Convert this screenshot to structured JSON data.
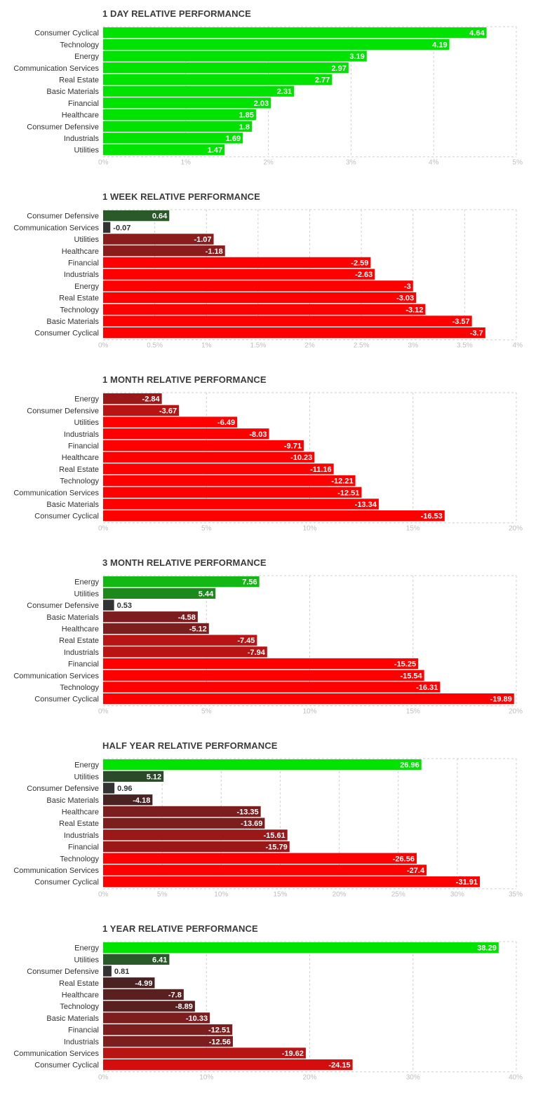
{
  "chart_data": [
    {
      "type": "bar",
      "orientation": "horizontal",
      "title": "1 DAY RELATIVE PERFORMANCE",
      "categories": [
        "Consumer Cyclical",
        "Technology",
        "Energy",
        "Communication Services",
        "Real Estate",
        "Basic Materials",
        "Financial",
        "Healthcare",
        "Consumer Defensive",
        "Industrials",
        "Utilities"
      ],
      "values": [
        4.64,
        4.19,
        3.19,
        2.97,
        2.77,
        2.31,
        2.03,
        1.85,
        1.8,
        1.69,
        1.47
      ],
      "value_labels": [
        "4.64",
        "4.19",
        "3.19",
        "2.97",
        "2.77",
        "2.31",
        "2.03",
        "1.85",
        "1.8",
        "1.69",
        "1.47"
      ],
      "xlim": [
        0,
        5
      ],
      "ticks": [
        0,
        1,
        2,
        3,
        4,
        5
      ],
      "tick_labels": [
        "0%",
        "1%",
        "2%",
        "3%",
        "4%",
        "5%"
      ],
      "colors": [
        "#00e200",
        "#00e200",
        "#00e200",
        "#00e200",
        "#00e200",
        "#00e200",
        "#00e200",
        "#00e200",
        "#00e200",
        "#00e200",
        "#00e200"
      ],
      "grid": true
    },
    {
      "type": "bar",
      "orientation": "horizontal",
      "title": "1 WEEK RELATIVE PERFORMANCE",
      "categories": [
        "Consumer Defensive",
        "Communication Services",
        "Utilities",
        "Healthcare",
        "Financial",
        "Industrials",
        "Energy",
        "Real Estate",
        "Technology",
        "Basic Materials",
        "Consumer Cyclical"
      ],
      "values": [
        0.64,
        -0.07,
        -1.07,
        -1.18,
        -2.59,
        -2.63,
        -3,
        -3.03,
        -3.12,
        -3.57,
        -3.7
      ],
      "value_labels": [
        "0.64",
        "-0.07",
        "-1.07",
        "-1.18",
        "-2.59",
        "-2.63",
        "-3",
        "-3.03",
        "-3.12",
        "-3.57",
        "-3.7"
      ],
      "xlim": [
        0,
        4
      ],
      "ticks": [
        0,
        0.5,
        1,
        1.5,
        2,
        2.5,
        3,
        3.5,
        4
      ],
      "tick_labels": [
        "0%",
        "0.5%",
        "1%",
        "1.5%",
        "2%",
        "2.5%",
        "3%",
        "3.5%",
        "4%"
      ],
      "colors": [
        "#2a5a2a",
        "#333333",
        "#8b1c1c",
        "#8b1c1c",
        "#ff0000",
        "#ff0000",
        "#ff0000",
        "#ff0000",
        "#ff0000",
        "#ff0000",
        "#ff0000"
      ],
      "grid": true
    },
    {
      "type": "bar",
      "orientation": "horizontal",
      "title": "1 MONTH RELATIVE PERFORMANCE",
      "categories": [
        "Energy",
        "Consumer Defensive",
        "Utilities",
        "Industrials",
        "Financial",
        "Healthcare",
        "Real Estate",
        "Technology",
        "Communication Services",
        "Basic Materials",
        "Consumer Cyclical"
      ],
      "values": [
        -2.84,
        -3.67,
        -6.49,
        -8.03,
        -9.71,
        -10.23,
        -11.16,
        -12.21,
        -12.51,
        -13.34,
        -16.53
      ],
      "value_labels": [
        "-2.84",
        "-3.67",
        "-6.49",
        "-8.03",
        "-9.71",
        "-10.23",
        "-11.16",
        "-12.21",
        "-12.51",
        "-13.34",
        "-16.53"
      ],
      "xlim": [
        0,
        20
      ],
      "ticks": [
        0,
        5,
        10,
        15,
        20
      ],
      "tick_labels": [
        "0%",
        "5%",
        "10%",
        "15%",
        "20%"
      ],
      "colors": [
        "#9a1818",
        "#b81414",
        "#ff0000",
        "#ff0000",
        "#ff0000",
        "#ff0000",
        "#ff0000",
        "#ff0000",
        "#ff0000",
        "#ff0000",
        "#ff0000"
      ],
      "grid": true
    },
    {
      "type": "bar",
      "orientation": "horizontal",
      "title": "3 MONTH RELATIVE PERFORMANCE",
      "categories": [
        "Energy",
        "Utilities",
        "Consumer Defensive",
        "Basic Materials",
        "Healthcare",
        "Real Estate",
        "Industrials",
        "Financial",
        "Communication Services",
        "Technology",
        "Consumer Cyclical"
      ],
      "values": [
        7.56,
        5.44,
        0.53,
        -4.58,
        -5.12,
        -7.45,
        -7.94,
        -15.25,
        -15.54,
        -16.31,
        -19.89
      ],
      "value_labels": [
        "7.56",
        "5.44",
        "0.53",
        "-4.58",
        "-5.12",
        "-7.45",
        "-7.94",
        "-15.25",
        "-15.54",
        "-16.31",
        "-19.89"
      ],
      "xlim": [
        0,
        20
      ],
      "ticks": [
        0,
        5,
        10,
        15,
        20
      ],
      "tick_labels": [
        "0%",
        "5%",
        "10%",
        "15%",
        "20%"
      ],
      "colors": [
        "#14b814",
        "#1b8a1b",
        "#333333",
        "#7d1e1e",
        "#7d1e1e",
        "#b81414",
        "#b81414",
        "#ff0000",
        "#ff0000",
        "#ff0000",
        "#ff0000"
      ],
      "grid": true
    },
    {
      "type": "bar",
      "orientation": "horizontal",
      "title": "HALF YEAR RELATIVE PERFORMANCE",
      "categories": [
        "Energy",
        "Utilities",
        "Consumer Defensive",
        "Basic Materials",
        "Healthcare",
        "Real Estate",
        "Industrials",
        "Financial",
        "Technology",
        "Communication Services",
        "Consumer Cyclical"
      ],
      "values": [
        26.96,
        5.12,
        0.96,
        -4.18,
        -13.35,
        -13.69,
        -15.61,
        -15.79,
        -26.56,
        -27.4,
        -31.91
      ],
      "value_labels": [
        "26.96",
        "5.12",
        "0.96",
        "-4.18",
        "-13.35",
        "-13.69",
        "-15.61",
        "-15.79",
        "-26.56",
        "-27.4",
        "-31.91"
      ],
      "xlim": [
        0,
        35
      ],
      "ticks": [
        0,
        5,
        10,
        15,
        20,
        25,
        30,
        35
      ],
      "tick_labels": [
        "0%",
        "5%",
        "10%",
        "15%",
        "20%",
        "25%",
        "30%",
        "35%"
      ],
      "colors": [
        "#00e200",
        "#2a4a2a",
        "#333333",
        "#4a2222",
        "#7d1e1e",
        "#7d1e1e",
        "#9a1818",
        "#9a1818",
        "#ff0000",
        "#ff0000",
        "#ff0000"
      ],
      "grid": true
    },
    {
      "type": "bar",
      "orientation": "horizontal",
      "title": "1 YEAR RELATIVE PERFORMANCE",
      "categories": [
        "Energy",
        "Utilities",
        "Consumer Defensive",
        "Real Estate",
        "Healthcare",
        "Technology",
        "Basic Materials",
        "Financial",
        "Industrials",
        "Communication Services",
        "Consumer Cyclical"
      ],
      "values": [
        38.29,
        6.41,
        0.81,
        -4.99,
        -7.8,
        -8.89,
        -10.33,
        -12.51,
        -12.56,
        -19.62,
        -24.15
      ],
      "value_labels": [
        "38.29",
        "6.41",
        "0.81",
        "-4.99",
        "-7.8",
        "-8.89",
        "-10.33",
        "-12.51",
        "-12.56",
        "-19.62",
        "-24.15"
      ],
      "xlim": [
        0,
        40
      ],
      "ticks": [
        0,
        10,
        20,
        30,
        40
      ],
      "tick_labels": [
        "0%",
        "10%",
        "20%",
        "30%",
        "40%"
      ],
      "colors": [
        "#00e200",
        "#2a5a2a",
        "#333333",
        "#4a2222",
        "#5a2020",
        "#5a2020",
        "#7d1e1e",
        "#7d1e1e",
        "#7d1e1e",
        "#b81414",
        "#d40d0d"
      ],
      "grid": true
    }
  ]
}
